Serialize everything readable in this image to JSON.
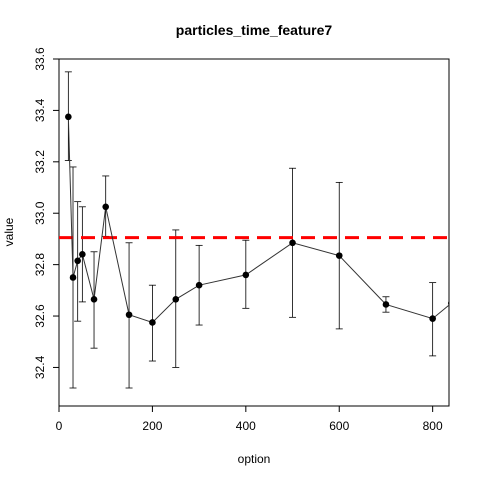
{
  "chart_data": {
    "type": "line",
    "title": "particles_time_feature7",
    "xlabel": "option",
    "ylabel": "value",
    "xlim": [
      0,
      835
    ],
    "ylim": [
      32.25,
      33.6
    ],
    "xticks": [
      0,
      200,
      400,
      600,
      800
    ],
    "yticks": [
      32.4,
      32.6,
      32.8,
      33.0,
      33.2,
      33.4,
      33.6
    ],
    "ytick_labels": [
      "32.4",
      "32.6",
      "32.8",
      "33.0",
      "33.2",
      "33.4",
      "33.6"
    ],
    "grid": false,
    "series": [
      {
        "x": [
          20,
          30,
          40,
          50,
          75,
          100,
          150,
          200,
          250,
          300,
          400,
          500,
          600,
          700,
          800,
          840
        ],
        "y": [
          33.375,
          32.75,
          32.815,
          32.84,
          32.665,
          33.025,
          32.605,
          32.575,
          32.665,
          32.72,
          32.76,
          32.885,
          32.835,
          32.645,
          32.59,
          32.65
        ],
        "ylow": [
          33.205,
          32.32,
          32.58,
          32.655,
          32.475,
          32.91,
          32.32,
          32.425,
          32.4,
          32.565,
          32.63,
          32.595,
          32.55,
          32.615,
          32.445,
          null
        ],
        "yhigh": [
          33.55,
          33.18,
          33.045,
          33.025,
          32.85,
          33.145,
          32.885,
          32.72,
          32.935,
          32.875,
          32.895,
          33.175,
          33.12,
          32.675,
          32.73,
          null
        ]
      }
    ],
    "reference_line": {
      "y": 32.905,
      "color": "#ff0000",
      "style": "dashed"
    },
    "colors": {
      "series": "#000000",
      "reference": "#ff0000"
    }
  }
}
